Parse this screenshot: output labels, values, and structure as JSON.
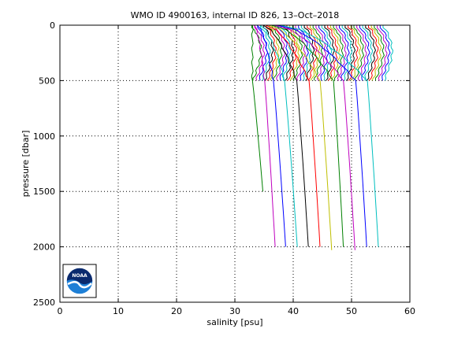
{
  "chart_data": {
    "type": "line",
    "title": "WMO ID 4900163, internal ID 826, 13–Oct–2018",
    "xlabel": "salinity [psu]",
    "ylabel": "pressure [dbar]",
    "xlim": [
      0,
      60
    ],
    "ylim": [
      0,
      2500
    ],
    "y_reversed": true,
    "grid": true,
    "x_ticks": [
      "0",
      "10",
      "20",
      "30",
      "40",
      "50",
      "60"
    ],
    "y_ticks": [
      "0",
      "500",
      "1000",
      "1500",
      "2000",
      "2500"
    ],
    "logo": "NOAA",
    "profile_offset_step": 0.5,
    "profile_colors": [
      "#008000",
      "#bf00bf",
      "#0000ff",
      "#00bfbf",
      "#000000",
      "#ff0000",
      "#bfbf00"
    ],
    "profiles_shallow_count": 46,
    "profiles_deep": [
      {
        "surface_salinity": 33.0,
        "salinity_500": 33.0,
        "salinity_bottom": 34.8,
        "bottom_pressure": 1500,
        "color": "#008000"
      },
      {
        "surface_salinity": 33.3,
        "salinity_500": 35.1,
        "salinity_bottom": 36.9,
        "bottom_pressure": 2000,
        "color": "#bf00bf"
      },
      {
        "surface_salinity": 33.8,
        "salinity_500": 36.6,
        "salinity_bottom": 38.7,
        "bottom_pressure": 2000,
        "color": "#0000ff"
      },
      {
        "surface_salinity": 34.3,
        "salinity_500": 38.5,
        "salinity_bottom": 40.7,
        "bottom_pressure": 2000,
        "color": "#00bfbf"
      },
      {
        "surface_salinity": 34.8,
        "salinity_500": 40.6,
        "salinity_bottom": 42.6,
        "bottom_pressure": 2000,
        "color": "#000000"
      },
      {
        "surface_salinity": 35.3,
        "salinity_500": 42.7,
        "salinity_bottom": 44.6,
        "bottom_pressure": 2000,
        "color": "#ff0000"
      },
      {
        "surface_salinity": 35.8,
        "salinity_500": 44.6,
        "salinity_bottom": 46.6,
        "bottom_pressure": 2030,
        "color": "#bfbf00"
      },
      {
        "surface_salinity": 36.3,
        "salinity_500": 46.9,
        "salinity_bottom": 48.6,
        "bottom_pressure": 2000,
        "color": "#008000"
      },
      {
        "surface_salinity": 36.8,
        "salinity_500": 48.6,
        "salinity_bottom": 50.6,
        "bottom_pressure": 2030,
        "color": "#bf00bf"
      },
      {
        "surface_salinity": 37.3,
        "salinity_500": 50.7,
        "salinity_bottom": 52.6,
        "bottom_pressure": 2000,
        "color": "#0000ff"
      },
      {
        "surface_salinity": 37.8,
        "salinity_500": 52.7,
        "salinity_bottom": 54.6,
        "bottom_pressure": 2000,
        "color": "#00bfbf"
      }
    ]
  }
}
